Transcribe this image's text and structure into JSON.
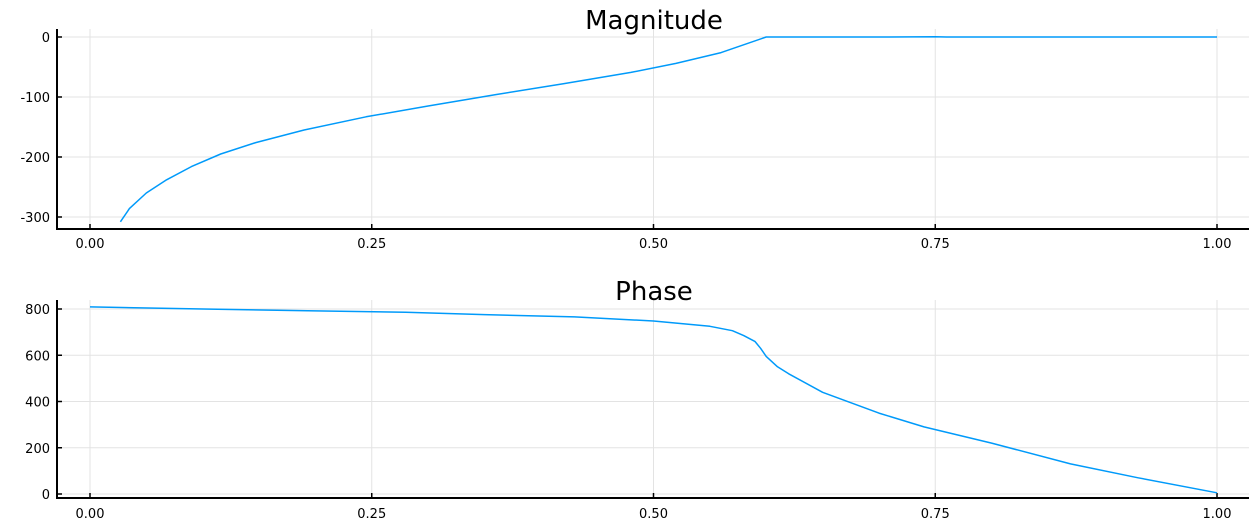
{
  "chart_data": [
    {
      "type": "line",
      "title": "Magnitude",
      "xlim": [
        0,
        1
      ],
      "ylim": [
        -320,
        0
      ],
      "x_ticks": [
        0,
        0.25,
        0.5,
        0.75,
        1
      ],
      "x_tick_labels": [
        "0.00",
        "0.25",
        "0.50",
        "0.75",
        "1.00"
      ],
      "y_ticks": [
        0,
        -100,
        -200,
        -300
      ],
      "y_tick_labels": [
        "0",
        "-100",
        "-200",
        "-300"
      ],
      "grid": true,
      "series": [
        {
          "name": "magnitude",
          "color": "#009AFA",
          "x": [
            0.027,
            0.035,
            0.05,
            0.068,
            0.09,
            0.116,
            0.147,
            0.19,
            0.245,
            0.3,
            0.36,
            0.42,
            0.48,
            0.52,
            0.56,
            0.6,
            0.65,
            0.7,
            0.75,
            0.76,
            0.8,
            0.85,
            0.9,
            0.95,
            1.0
          ],
          "y": [
            -308,
            -286,
            -260,
            -238,
            -216,
            -195,
            -176,
            -155,
            -133,
            -115,
            -96,
            -78,
            -59,
            -44,
            -26,
            0,
            0,
            0,
            0.5,
            0,
            0,
            0,
            0,
            0,
            0
          ]
        }
      ]
    },
    {
      "type": "line",
      "title": "Phase",
      "xlim": [
        0,
        1
      ],
      "ylim": [
        -10,
        830
      ],
      "x_ticks": [
        0,
        0.25,
        0.5,
        0.75,
        1
      ],
      "x_tick_labels": [
        "0.00",
        "0.25",
        "0.50",
        "0.75",
        "1.00"
      ],
      "y_ticks": [
        0,
        200,
        400,
        600,
        800
      ],
      "y_tick_labels": [
        "0",
        "200",
        "400",
        "600",
        "800"
      ],
      "grid": true,
      "series": [
        {
          "name": "phase",
          "color": "#009AFA",
          "x": [
            0.0,
            0.1,
            0.2,
            0.28,
            0.35,
            0.43,
            0.5,
            0.55,
            0.57,
            0.58,
            0.59,
            0.595,
            0.6,
            0.61,
            0.62,
            0.65,
            0.7,
            0.74,
            0.8,
            0.87,
            0.93,
            1.0
          ],
          "y": [
            809,
            800,
            792,
            786,
            776,
            766,
            748,
            725,
            706,
            685,
            660,
            630,
            595,
            550,
            520,
            440,
            350,
            290,
            220,
            130,
            70,
            5
          ]
        }
      ]
    }
  ]
}
